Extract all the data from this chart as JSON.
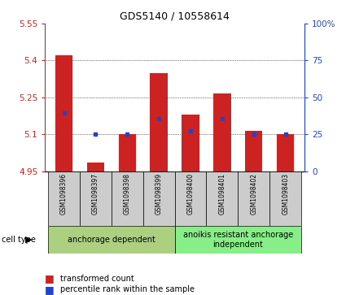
{
  "title": "GDS5140 / 10558614",
  "samples": [
    "GSM1098396",
    "GSM1098397",
    "GSM1098398",
    "GSM1098399",
    "GSM1098400",
    "GSM1098401",
    "GSM1098402",
    "GSM1098403"
  ],
  "bar_values": [
    5.42,
    4.985,
    5.1,
    5.35,
    5.18,
    5.265,
    5.115,
    5.1
  ],
  "dot_values": [
    5.185,
    5.1,
    5.1,
    5.165,
    5.115,
    5.165,
    5.1,
    5.1
  ],
  "bar_bottom": 4.95,
  "ylim": [
    4.95,
    5.55
  ],
  "yticks": [
    4.95,
    5.1,
    5.25,
    5.4,
    5.55
  ],
  "ytick_labels": [
    "4.95",
    "5.1",
    "5.25",
    "5.4",
    "5.55"
  ],
  "y2lim": [
    0,
    100
  ],
  "y2ticks": [
    0,
    25,
    50,
    75,
    100
  ],
  "y2tick_labels": [
    "0",
    "25",
    "50",
    "75",
    "100%"
  ],
  "bar_color": "#cc2222",
  "dot_color": "#2244cc",
  "group1_label": "anchorage dependent",
  "group2_label": "anoikis resistant anchorage\nindependent",
  "group1_indices": [
    0,
    1,
    2,
    3
  ],
  "group2_indices": [
    4,
    5,
    6,
    7
  ],
  "group_bg1": "#aad080",
  "group_bg2": "#88ee88",
  "sample_bg": "#cccccc",
  "cell_type_label": "cell type",
  "legend1": "transformed count",
  "legend2": "percentile rank within the sample",
  "bar_width": 0.55,
  "title_fontsize": 9,
  "tick_fontsize": 7.5,
  "sample_fontsize": 5.5,
  "group_fontsize": 7,
  "legend_fontsize": 7
}
